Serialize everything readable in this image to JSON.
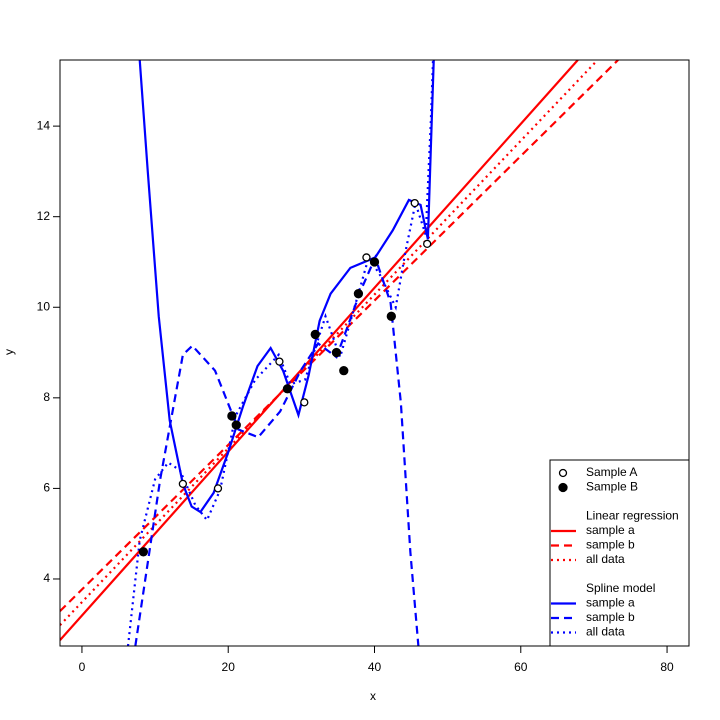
{
  "chart_data": {
    "type": "scatter",
    "xlabel": "x",
    "ylabel": "y",
    "xlim": [
      -3,
      83
    ],
    "ylim": [
      2.52,
      15.46
    ],
    "xticks": [
      0,
      20,
      40,
      60,
      80
    ],
    "yticks": [
      4,
      6,
      8,
      10,
      12,
      14
    ],
    "legend": "bottom-right",
    "series": [
      {
        "name": "Sample A",
        "color": "#000000",
        "filled": false,
        "x": [
          13.8,
          18.6,
          27.0,
          30.4,
          38.9,
          45.5,
          47.2
        ],
        "values": [
          6.1,
          6.0,
          8.8,
          7.9,
          11.1,
          12.3,
          11.4
        ]
      },
      {
        "name": "Sample B",
        "color": "#000000",
        "filled": true,
        "x": [
          8.4,
          20.5,
          21.1,
          28.1,
          31.9,
          34.8,
          35.8,
          37.8,
          40.0,
          42.3
        ],
        "values": [
          4.6,
          7.6,
          7.4,
          8.2,
          9.4,
          9.0,
          8.6,
          10.3,
          11.0,
          9.8
        ]
      }
    ],
    "line_groups": [
      {
        "title": "Linear regression",
        "series": [
          {
            "name": "sample a",
            "color": "#ff0000",
            "dash": "solid",
            "x": [
              -3,
              67.8
            ],
            "values": [
              2.65,
              15.46
            ]
          },
          {
            "name": "sample b",
            "color": "#ff0000",
            "dash": "dashed",
            "x": [
              -3,
              73.3
            ],
            "values": [
              3.29,
              15.46
            ]
          },
          {
            "name": "all data",
            "color": "#ff0000",
            "dash": "dotted",
            "x": [
              -3,
              70.5
            ],
            "values": [
              2.98,
              15.46
            ]
          }
        ]
      },
      {
        "title": "Spline model",
        "series": [
          {
            "name": "sample a",
            "color": "#0000ff",
            "dash": "solid",
            "x": [
              7.9,
              9,
              10.5,
              12,
              13.8,
              15,
              16.2,
              18,
              20,
              22,
              24,
              25.8,
              27.5,
              29.6,
              31,
              32.5,
              34,
              36.7,
              40.1,
              42.5,
              44.7,
              46.3,
              47.3,
              47.7,
              48.1
            ],
            "values": [
              15.46,
              13.0,
              9.8,
              7.5,
              6.1,
              5.6,
              5.48,
              5.9,
              6.8,
              7.8,
              8.7,
              9.1,
              8.6,
              7.62,
              8.5,
              9.7,
              10.3,
              10.87,
              11.1,
              11.7,
              12.37,
              12.26,
              11.5,
              13.5,
              15.46
            ]
          },
          {
            "name": "sample b",
            "color": "#0000ff",
            "dash": "dashed",
            "x": [
              7.3,
              10.7,
              13.8,
              15.1,
              18.2,
              21.4,
              24.1,
              27.1,
              29.9,
              32.3,
              34.8,
              38.1,
              40.1,
              42.2,
              43.6,
              44.9,
              46.0
            ],
            "values": [
              2.52,
              6.2,
              8.95,
              9.15,
              8.6,
              7.3,
              7.13,
              7.7,
              8.6,
              9.2,
              8.9,
              10.36,
              11.1,
              10.1,
              7.9,
              4.6,
              2.52
            ]
          },
          {
            "name": "all data",
            "color": "#0000ff",
            "dash": "dotted",
            "x": [
              6.3,
              7.9,
              10,
              11.8,
              13.4,
              15.5,
              17.1,
              18.9,
              21,
              23.7,
              26.9,
              28.5,
              30.5,
              33.3,
              35.3,
              37.8,
              39.2,
              40.8,
              42.9,
              44.2,
              45.6,
              47,
              47.7,
              48
            ],
            "values": [
              2.52,
              4.85,
              6.2,
              6.57,
              6.4,
              5.63,
              5.3,
              5.97,
              7.6,
              8.4,
              8.95,
              8.3,
              8.4,
              9.8,
              8.9,
              10.3,
              11.1,
              10.7,
              10.0,
              11.2,
              12.3,
              11.6,
              14.1,
              15.46
            ]
          }
        ]
      }
    ]
  }
}
